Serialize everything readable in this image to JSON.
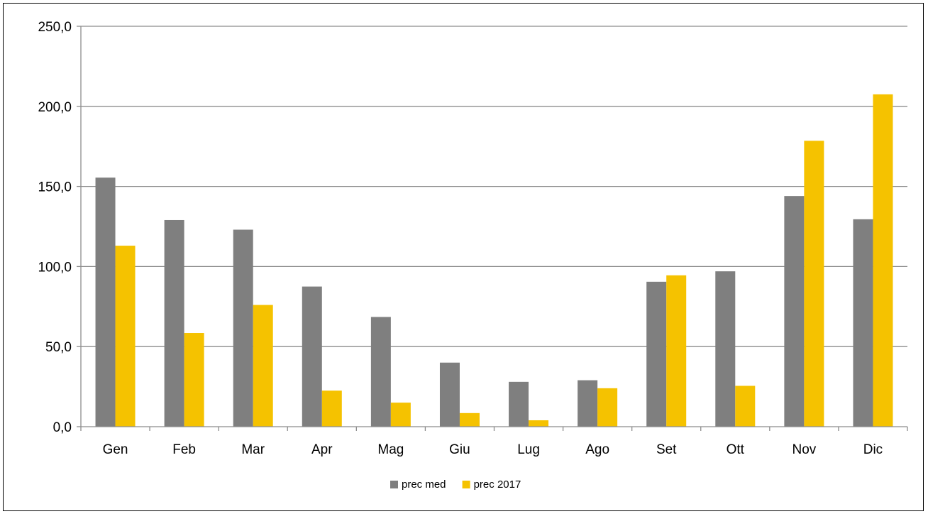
{
  "chart_data": {
    "type": "bar",
    "categories": [
      "Gen",
      "Feb",
      "Mar",
      "Apr",
      "Mag",
      "Giu",
      "Lug",
      "Ago",
      "Set",
      "Ott",
      "Nov",
      "Dic"
    ],
    "series": [
      {
        "name": "prec med",
        "color": "#7f7f7f",
        "values": [
          155.5,
          129.0,
          123.0,
          87.5,
          68.5,
          40.0,
          28.0,
          29.0,
          90.5,
          97.0,
          144.0,
          129.5
        ]
      },
      {
        "name": "prec 2017",
        "color": "#f5c200",
        "values": [
          113.0,
          58.5,
          76.0,
          22.5,
          15.0,
          8.5,
          4.0,
          24.0,
          94.5,
          25.5,
          178.5,
          207.5
        ]
      }
    ],
    "yticks": [
      "0,0",
      "50,0",
      "100,0",
      "150,0",
      "200,0",
      "250,0"
    ],
    "ylim": [
      0,
      250
    ],
    "grid": true,
    "legend_position": "bottom"
  }
}
